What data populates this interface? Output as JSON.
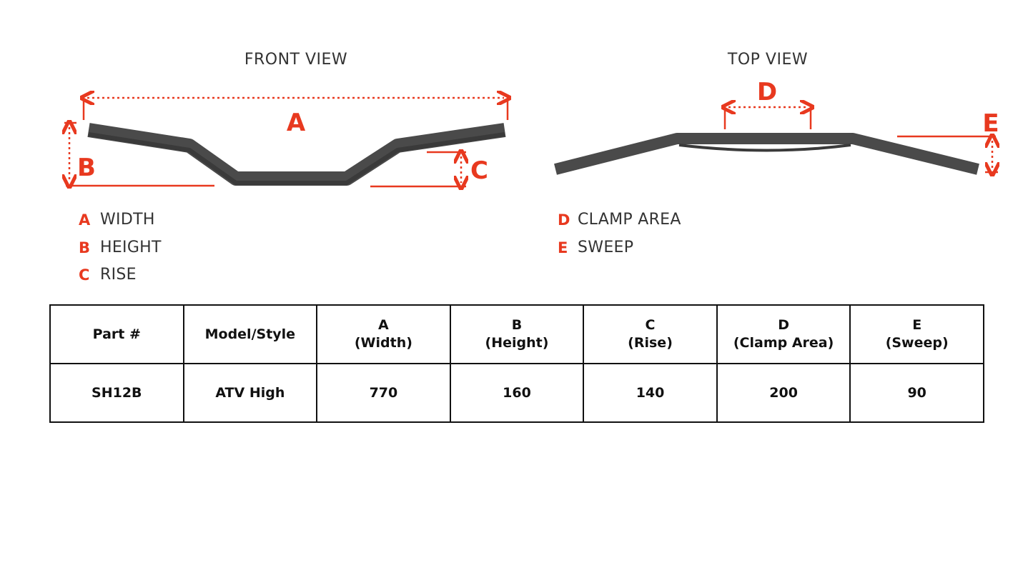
{
  "front_view": {
    "title": "FRONT VIEW",
    "labels": {
      "a": "A",
      "b": "B",
      "c": "C"
    }
  },
  "top_view": {
    "title": "TOP VIEW",
    "labels": {
      "d": "D",
      "e": "E"
    }
  },
  "legend_front": [
    {
      "letter": "A",
      "text": "WIDTH"
    },
    {
      "letter": "B",
      "text": "HEIGHT"
    },
    {
      "letter": "C",
      "text": "RISE"
    }
  ],
  "legend_top": [
    {
      "letter": "D",
      "text": "CLAMP AREA"
    },
    {
      "letter": "E",
      "text": "SWEEP"
    }
  ],
  "colors": {
    "accent": "#e8391f",
    "bar": "#4a4a4a"
  },
  "table": {
    "headers": [
      [
        "Part #"
      ],
      [
        "Model/Style"
      ],
      [
        "A",
        "(Width)"
      ],
      [
        "B",
        "(Height)"
      ],
      [
        "C",
        "(Rise)"
      ],
      [
        "D",
        "(Clamp Area)"
      ],
      [
        "E",
        "(Sweep)"
      ]
    ],
    "rows": [
      [
        "SH12B",
        "ATV High",
        "770",
        "160",
        "140",
        "200",
        "90"
      ]
    ]
  }
}
